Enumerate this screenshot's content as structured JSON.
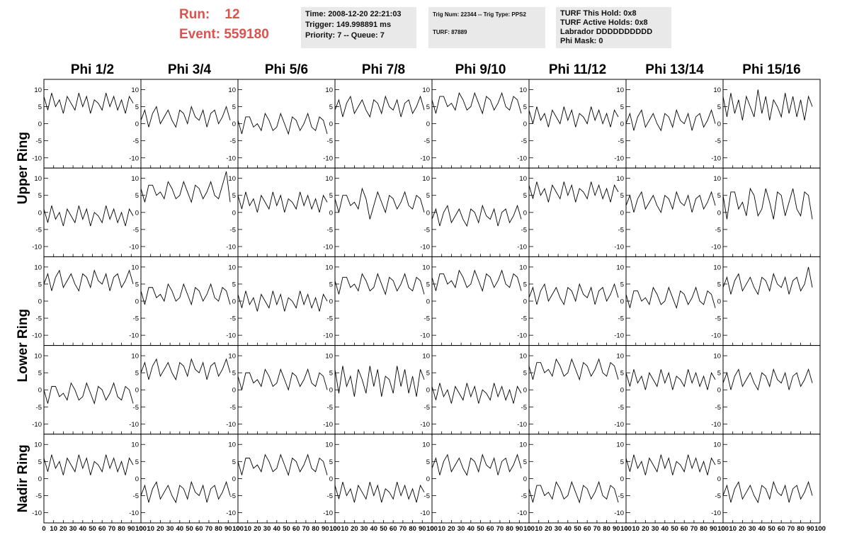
{
  "header": {
    "run_label": "Run:",
    "run": 12,
    "event_label": "Event:",
    "event": 559180
  },
  "info_boxes": [
    [
      "Time: 2008-12-20 22:21:03",
      "Trigger: 149.998891 ms",
      "Priority: 7 -- Queue: 7"
    ],
    [
      "Trig Num: 22344 -- Trig Type: PPS2",
      "TURF: 87889"
    ],
    [
      "TURF This Hold: 0x8",
      "TURF Active Holds: 0x8",
      "Labrador DDDDDDDDDD",
      "Phi Mask: 0"
    ]
  ],
  "chart_data": {
    "type": "line",
    "columns": [
      "Phi 1/2",
      "Phi 3/4",
      "Phi 5/6",
      "Phi 7/8",
      "Phi 9/10",
      "Phi 11/12",
      "Phi 13/14",
      "Phi 15/16"
    ],
    "row_labels": [
      "Upper Ring",
      "Lower Ring",
      "Nadir Ring"
    ],
    "xlim": [
      0,
      100
    ],
    "xticks": [
      0,
      10,
      20,
      30,
      40,
      50,
      60,
      70,
      80,
      90,
      100
    ],
    "ylim": [
      -13,
      13
    ],
    "yticks": [
      -10,
      -5,
      0,
      5,
      10
    ],
    "color": "#000000",
    "x": [
      0,
      4,
      8,
      12,
      16,
      20,
      24,
      28,
      32,
      36,
      40,
      44,
      48,
      52,
      56,
      60,
      64,
      68,
      72,
      76,
      80,
      84,
      88,
      92
    ],
    "series": [
      {
        "values": [
          8,
          4,
          9,
          5,
          7,
          3,
          8,
          6,
          4,
          9,
          5,
          8,
          3,
          7,
          6,
          4,
          9,
          5,
          8,
          4,
          7,
          3,
          8,
          6
        ]
      },
      {
        "values": [
          1,
          4,
          -1,
          3,
          5,
          0,
          2,
          4,
          1,
          -1,
          4,
          3,
          0,
          5,
          2,
          1,
          4,
          -1,
          3,
          4,
          0,
          2,
          5,
          1
        ]
      },
      {
        "values": [
          1,
          -3,
          2,
          2,
          -1,
          0,
          -2,
          3,
          1,
          -2,
          -1,
          3,
          0,
          -3,
          2,
          1,
          -2,
          0,
          3,
          -1,
          -2,
          2,
          1,
          -3
        ]
      },
      {
        "values": [
          4,
          7,
          2,
          6,
          8,
          3,
          5,
          7,
          4,
          2,
          7,
          6,
          3,
          8,
          5,
          4,
          7,
          2,
          6,
          7,
          3,
          5,
          8,
          4
        ]
      },
      {
        "values": [
          7,
          3,
          8,
          8,
          5,
          6,
          4,
          9,
          7,
          4,
          5,
          9,
          6,
          3,
          8,
          7,
          4,
          6,
          9,
          5,
          4,
          8,
          7,
          3
        ]
      },
      {
        "values": [
          4,
          0,
          5,
          1,
          3,
          -1,
          4,
          2,
          0,
          5,
          1,
          4,
          -1,
          3,
          2,
          0,
          5,
          1,
          4,
          0,
          3,
          -1,
          4,
          2
        ]
      },
      {
        "values": [
          0,
          3,
          -2,
          2,
          4,
          -1,
          1,
          3,
          0,
          -2,
          3,
          2,
          -1,
          4,
          1,
          0,
          3,
          -2,
          2,
          3,
          -1,
          1,
          4,
          0
        ]
      },
      {
        "values": [
          8,
          2,
          9,
          3,
          7,
          1,
          8,
          5,
          2,
          10,
          3,
          8,
          1,
          7,
          5,
          2,
          9,
          3,
          8,
          2,
          7,
          1,
          8,
          5
        ]
      },
      {
        "values": [
          1,
          -3,
          2,
          -2,
          0,
          -4,
          1,
          -1,
          -3,
          2,
          -2,
          1,
          -4,
          0,
          -1,
          -3,
          2,
          -2,
          1,
          -3,
          0,
          -4,
          1,
          -1
        ]
      },
      {
        "values": [
          7,
          3,
          8,
          8,
          5,
          6,
          4,
          9,
          7,
          4,
          5,
          9,
          6,
          3,
          8,
          7,
          4,
          6,
          9,
          5,
          4,
          8,
          12,
          3
        ]
      },
      {
        "values": [
          5,
          1,
          6,
          2,
          4,
          0,
          5,
          3,
          1,
          6,
          2,
          5,
          0,
          4,
          3,
          1,
          6,
          2,
          5,
          1,
          4,
          0,
          5,
          3
        ]
      },
      {
        "values": [
          4,
          0,
          5,
          5,
          2,
          3,
          1,
          7,
          4,
          -2,
          2,
          6,
          3,
          0,
          5,
          4,
          1,
          3,
          6,
          2,
          1,
          5,
          4,
          0
        ]
      },
      {
        "values": [
          -2,
          1,
          -4,
          0,
          2,
          -3,
          -1,
          1,
          -2,
          -4,
          1,
          0,
          -3,
          2,
          -1,
          -2,
          1,
          -4,
          0,
          1,
          -3,
          -1,
          2,
          -2
        ]
      },
      {
        "values": [
          8,
          4,
          9,
          5,
          7,
          3,
          8,
          6,
          4,
          9,
          5,
          8,
          3,
          7,
          6,
          4,
          9,
          5,
          8,
          4,
          7,
          3,
          8,
          6
        ]
      },
      {
        "values": [
          2,
          5,
          0,
          4,
          6,
          1,
          3,
          5,
          2,
          0,
          5,
          4,
          1,
          6,
          3,
          2,
          5,
          0,
          4,
          5,
          1,
          3,
          6,
          2
        ]
      },
      {
        "values": [
          5,
          -2,
          6,
          6,
          1,
          3,
          -1,
          7,
          5,
          -1,
          1,
          7,
          3,
          -2,
          6,
          5,
          -1,
          3,
          7,
          1,
          -1,
          6,
          5,
          -2
        ]
      },
      {
        "values": [
          5,
          8,
          3,
          7,
          9,
          4,
          6,
          8,
          5,
          3,
          8,
          7,
          4,
          9,
          6,
          5,
          8,
          3,
          7,
          8,
          4,
          6,
          9,
          5
        ]
      },
      {
        "values": [
          3,
          -1,
          4,
          4,
          1,
          2,
          0,
          5,
          3,
          0,
          1,
          5,
          2,
          -1,
          4,
          3,
          0,
          2,
          5,
          1,
          0,
          4,
          3,
          -1
        ]
      },
      {
        "values": [
          2,
          -2,
          3,
          -1,
          1,
          -3,
          2,
          0,
          -2,
          3,
          -1,
          2,
          -3,
          1,
          0,
          -2,
          3,
          -1,
          2,
          -2,
          1,
          -3,
          2,
          0
        ]
      },
      {
        "values": [
          6,
          2,
          7,
          7,
          4,
          5,
          3,
          8,
          6,
          3,
          4,
          8,
          5,
          2,
          7,
          6,
          3,
          5,
          8,
          4,
          3,
          7,
          6,
          2
        ]
      },
      {
        "values": [
          7,
          3,
          8,
          8,
          5,
          6,
          4,
          9,
          7,
          4,
          5,
          9,
          6,
          3,
          8,
          7,
          4,
          6,
          9,
          5,
          4,
          8,
          7,
          3
        ]
      },
      {
        "values": [
          1,
          4,
          -1,
          3,
          5,
          0,
          2,
          4,
          1,
          -1,
          4,
          3,
          0,
          5,
          2,
          1,
          4,
          -1,
          3,
          4,
          0,
          2,
          5,
          1
        ]
      },
      {
        "values": [
          2,
          -2,
          3,
          3,
          0,
          1,
          -1,
          4,
          2,
          -1,
          0,
          4,
          1,
          -2,
          3,
          2,
          -1,
          1,
          4,
          0,
          -1,
          3,
          2,
          -2
        ]
      },
      {
        "values": [
          4,
          7,
          2,
          6,
          8,
          3,
          5,
          7,
          4,
          2,
          7,
          6,
          3,
          8,
          5,
          4,
          7,
          2,
          6,
          7,
          3,
          5,
          10,
          4
        ]
      },
      {
        "values": [
          0,
          -4,
          1,
          1,
          -2,
          -1,
          -3,
          2,
          0,
          -3,
          -2,
          2,
          -1,
          -4,
          1,
          0,
          -3,
          -1,
          2,
          -2,
          -3,
          1,
          0,
          -4
        ]
      },
      {
        "values": [
          5,
          8,
          3,
          7,
          9,
          4,
          6,
          8,
          5,
          3,
          8,
          7,
          4,
          9,
          6,
          5,
          8,
          3,
          7,
          8,
          4,
          6,
          9,
          5
        ]
      },
      {
        "values": [
          4,
          0,
          5,
          5,
          2,
          3,
          1,
          6,
          4,
          1,
          2,
          6,
          3,
          0,
          5,
          4,
          1,
          3,
          6,
          2,
          1,
          5,
          4,
          0
        ]
      },
      {
        "values": [
          6,
          -1,
          7,
          1,
          4,
          -2,
          6,
          3,
          -1,
          7,
          1,
          6,
          -2,
          4,
          3,
          -1,
          7,
          1,
          6,
          -1,
          4,
          -2,
          6,
          3
        ]
      },
      {
        "values": [
          1,
          -3,
          2,
          -2,
          0,
          -4,
          1,
          -1,
          -3,
          2,
          -2,
          1,
          -4,
          0,
          -1,
          -3,
          2,
          -2,
          1,
          -3,
          0,
          -4,
          1,
          -1
        ]
      },
      {
        "values": [
          7,
          3,
          8,
          8,
          5,
          6,
          4,
          9,
          7,
          4,
          5,
          9,
          6,
          3,
          8,
          7,
          4,
          6,
          9,
          5,
          4,
          8,
          7,
          3
        ]
      },
      {
        "values": [
          5,
          1,
          6,
          2,
          4,
          0,
          5,
          3,
          1,
          6,
          2,
          5,
          0,
          4,
          3,
          1,
          6,
          2,
          5,
          1,
          4,
          0,
          5,
          3
        ]
      },
      {
        "values": [
          2,
          5,
          0,
          4,
          6,
          1,
          3,
          5,
          2,
          0,
          5,
          4,
          1,
          6,
          3,
          2,
          5,
          0,
          4,
          5,
          1,
          3,
          6,
          2
        ]
      },
      {
        "values": [
          6,
          2,
          7,
          3,
          5,
          1,
          6,
          4,
          2,
          7,
          3,
          6,
          1,
          5,
          4,
          2,
          7,
          3,
          6,
          2,
          5,
          1,
          6,
          4
        ]
      },
      {
        "values": [
          -5,
          -2,
          -7,
          -3,
          -1,
          -6,
          -4,
          -2,
          -5,
          -7,
          -2,
          -3,
          -6,
          -1,
          -4,
          -5,
          -2,
          -7,
          -3,
          -2,
          -6,
          -4,
          -1,
          -5
        ]
      },
      {
        "values": [
          5,
          1,
          6,
          6,
          3,
          4,
          2,
          7,
          5,
          2,
          3,
          7,
          4,
          1,
          6,
          5,
          2,
          4,
          7,
          3,
          2,
          6,
          5,
          1
        ]
      },
      {
        "values": [
          -2,
          -6,
          -1,
          -5,
          -3,
          -7,
          -2,
          -4,
          -6,
          -1,
          -5,
          -2,
          -7,
          -3,
          -4,
          -6,
          -1,
          -5,
          -2,
          -6,
          -3,
          -7,
          -2,
          -4
        ]
      },
      {
        "values": [
          3,
          6,
          1,
          5,
          7,
          2,
          4,
          6,
          3,
          1,
          6,
          5,
          2,
          7,
          4,
          3,
          6,
          1,
          5,
          6,
          2,
          4,
          7,
          3
        ]
      },
      {
        "values": [
          -3,
          -7,
          -2,
          -2,
          -5,
          -4,
          -6,
          -1,
          -3,
          -6,
          -5,
          -1,
          -4,
          -7,
          -2,
          -3,
          -6,
          -4,
          -1,
          -5,
          -6,
          -2,
          -3,
          -7
        ]
      },
      {
        "values": [
          6,
          2,
          7,
          3,
          5,
          1,
          6,
          4,
          2,
          7,
          3,
          6,
          1,
          5,
          4,
          2,
          7,
          3,
          6,
          2,
          5,
          1,
          6,
          4
        ]
      },
      {
        "values": [
          -5,
          -2,
          -7,
          -3,
          -1,
          -6,
          -4,
          -2,
          -5,
          -7,
          -2,
          -3,
          -6,
          -1,
          -4,
          -5,
          -2,
          -7,
          -3,
          -2,
          -6,
          -4,
          -1,
          -5
        ]
      }
    ]
  }
}
